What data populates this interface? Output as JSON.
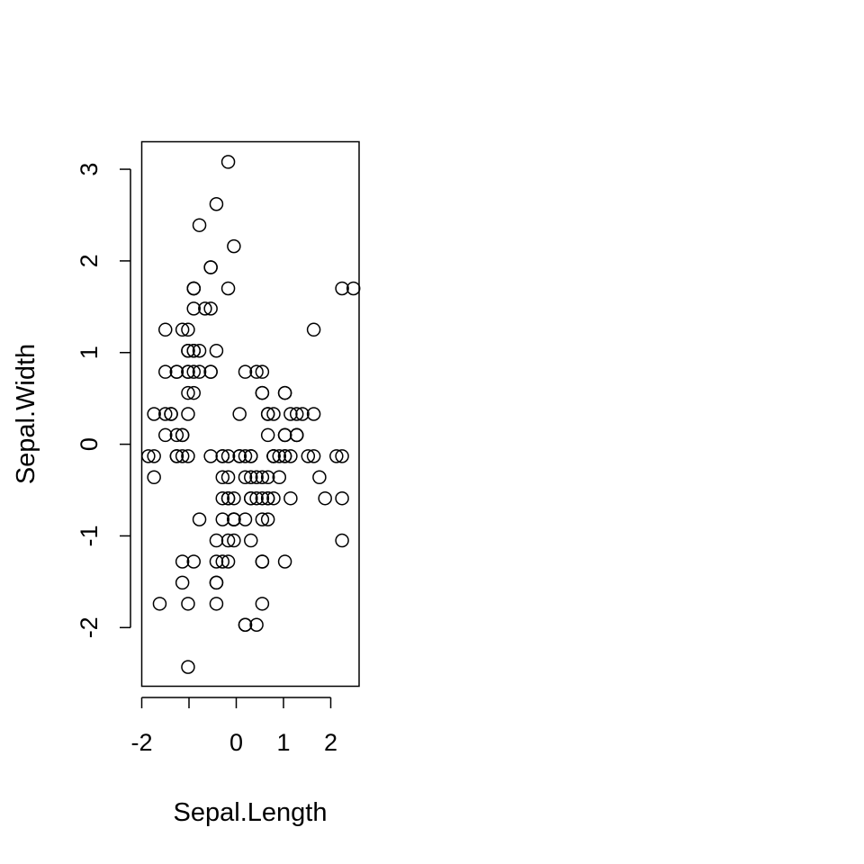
{
  "chart_data": {
    "type": "scatter",
    "xlabel": "Sepal.Length",
    "ylabel": "Sepal.Width",
    "xlim": [
      -2.0,
      2.6
    ],
    "ylim": [
      -2.64,
      3.3
    ],
    "xticks": [
      {
        "value": -2,
        "label": "-2"
      },
      {
        "value": -1,
        "label": ""
      },
      {
        "value": 0,
        "label": "0"
      },
      {
        "value": 1,
        "label": "1"
      },
      {
        "value": 2,
        "label": "2"
      }
    ],
    "yticks": [
      {
        "value": -2,
        "label": "-2"
      },
      {
        "value": -1,
        "label": "-1"
      },
      {
        "value": 0,
        "label": "0"
      },
      {
        "value": 1,
        "label": "1"
      },
      {
        "value": 2,
        "label": "2"
      },
      {
        "value": 3,
        "label": "3"
      }
    ],
    "marker": "open-circle",
    "points": [
      [
        -0.9,
        1.02
      ],
      [
        -1.14,
        -0.13
      ],
      [
        -1.38,
        0.33
      ],
      [
        -1.5,
        0.1
      ],
      [
        -1.02,
        1.25
      ],
      [
        -0.54,
        1.93
      ],
      [
        -1.5,
        0.79
      ],
      [
        -1.02,
        0.79
      ],
      [
        -1.74,
        -0.36
      ],
      [
        -1.14,
        0.1
      ],
      [
        -0.54,
        1.48
      ],
      [
        -1.26,
        0.79
      ],
      [
        -1.26,
        -0.13
      ],
      [
        -1.86,
        -0.13
      ],
      [
        -0.05,
        2.16
      ],
      [
        -0.17,
        3.08
      ],
      [
        -0.54,
        1.93
      ],
      [
        -0.9,
        1.02
      ],
      [
        -0.17,
        1.7
      ],
      [
        -0.9,
        1.7
      ],
      [
        -0.54,
        0.79
      ],
      [
        -0.9,
        1.48
      ],
      [
        -1.5,
        1.25
      ],
      [
        -0.9,
        0.56
      ],
      [
        -1.26,
        0.79
      ],
      [
        -1.02,
        -0.13
      ],
      [
        -1.02,
        0.79
      ],
      [
        -0.78,
        1.02
      ],
      [
        -0.78,
        0.79
      ],
      [
        -1.38,
        0.33
      ],
      [
        -1.26,
        0.1
      ],
      [
        -0.54,
        0.79
      ],
      [
        -0.78,
        2.39
      ],
      [
        -0.42,
        2.62
      ],
      [
        -1.14,
        0.1
      ],
      [
        -1.02,
        0.33
      ],
      [
        -0.42,
        1.02
      ],
      [
        -1.14,
        1.25
      ],
      [
        -1.74,
        -0.13
      ],
      [
        -0.9,
        0.79
      ],
      [
        -1.02,
        1.02
      ],
      [
        -1.62,
        -1.74
      ],
      [
        -1.74,
        0.33
      ],
      [
        -1.02,
        1.02
      ],
      [
        -0.9,
        1.7
      ],
      [
        -1.26,
        -0.13
      ],
      [
        -0.9,
        1.7
      ],
      [
        -1.5,
        0.33
      ],
      [
        -0.66,
        1.48
      ],
      [
        -1.02,
        0.56
      ],
      [
        1.4,
        0.33
      ],
      [
        0.67,
        0.33
      ],
      [
        1.28,
        0.1
      ],
      [
        -0.42,
        -1.74
      ],
      [
        0.79,
        -0.59
      ],
      [
        -0.17,
        -0.59
      ],
      [
        0.55,
        0.56
      ],
      [
        -1.14,
        -1.51
      ],
      [
        0.91,
        -0.36
      ],
      [
        -0.78,
        -0.82
      ],
      [
        -1.02,
        -2.43
      ],
      [
        0.07,
        -0.13
      ],
      [
        0.19,
        -1.97
      ],
      [
        0.31,
        -0.36
      ],
      [
        -0.29,
        -0.36
      ],
      [
        1.03,
        0.1
      ],
      [
        -0.29,
        -0.13
      ],
      [
        -0.05,
        -0.82
      ],
      [
        0.43,
        -1.97
      ],
      [
        -0.29,
        -1.28
      ],
      [
        0.07,
        0.33
      ],
      [
        0.31,
        -0.59
      ],
      [
        0.55,
        -1.28
      ],
      [
        0.31,
        -0.59
      ],
      [
        0.67,
        -0.36
      ],
      [
        0.91,
        -0.13
      ],
      [
        1.15,
        -0.59
      ],
      [
        1.03,
        -0.13
      ],
      [
        0.19,
        -0.36
      ],
      [
        -0.17,
        -1.05
      ],
      [
        -0.42,
        -1.51
      ],
      [
        -0.42,
        -1.51
      ],
      [
        -0.05,
        -0.82
      ],
      [
        0.19,
        -0.82
      ],
      [
        -0.54,
        -0.13
      ],
      [
        0.19,
        0.79
      ],
      [
        1.03,
        0.1
      ],
      [
        0.55,
        -1.74
      ],
      [
        -0.29,
        -0.13
      ],
      [
        -0.42,
        -1.28
      ],
      [
        -0.42,
        -1.05
      ],
      [
        0.31,
        -0.13
      ],
      [
        -0.05,
        -1.05
      ],
      [
        -1.02,
        -1.74
      ],
      [
        -0.29,
        -0.82
      ],
      [
        -0.17,
        -0.13
      ],
      [
        -0.17,
        -0.36
      ],
      [
        0.43,
        -0.36
      ],
      [
        -0.9,
        -1.28
      ],
      [
        -0.17,
        -0.59
      ],
      [
        0.55,
        0.56
      ],
      [
        -0.05,
        -0.82
      ],
      [
        1.52,
        -0.13
      ],
      [
        0.55,
        -0.36
      ],
      [
        0.79,
        -0.13
      ],
      [
        2.12,
        -0.13
      ],
      [
        -1.14,
        -1.28
      ],
      [
        1.76,
        -0.36
      ],
      [
        1.03,
        -1.28
      ],
      [
        1.64,
        1.25
      ],
      [
        0.79,
        0.33
      ],
      [
        0.67,
        -0.82
      ],
      [
        1.15,
        -0.13
      ],
      [
        -0.17,
        -1.28
      ],
      [
        -0.05,
        -0.59
      ],
      [
        0.67,
        0.33
      ],
      [
        0.79,
        -0.13
      ],
      [
        2.24,
        1.7
      ],
      [
        2.24,
        -1.05
      ],
      [
        0.19,
        -1.97
      ],
      [
        1.28,
        0.33
      ],
      [
        -0.29,
        -0.59
      ],
      [
        2.24,
        -0.59
      ],
      [
        0.55,
        -0.82
      ],
      [
        1.03,
        0.56
      ],
      [
        1.64,
        0.33
      ],
      [
        0.43,
        -0.59
      ],
      [
        0.31,
        -0.13
      ],
      [
        0.67,
        -0.59
      ],
      [
        1.64,
        -0.13
      ],
      [
        1.88,
        -0.59
      ],
      [
        2.48,
        1.7
      ],
      [
        0.67,
        -0.59
      ],
      [
        0.55,
        -0.59
      ],
      [
        0.31,
        -1.05
      ],
      [
        2.24,
        -0.13
      ],
      [
        0.55,
        0.79
      ],
      [
        0.67,
        0.1
      ],
      [
        0.19,
        -0.13
      ],
      [
        1.28,
        0.1
      ],
      [
        1.03,
        0.1
      ],
      [
        1.28,
        0.1
      ],
      [
        -0.05,
        -0.82
      ],
      [
        1.15,
        0.33
      ],
      [
        1.03,
        0.56
      ],
      [
        1.03,
        -0.13
      ],
      [
        0.55,
        -1.28
      ],
      [
        0.79,
        -0.13
      ],
      [
        0.43,
        0.79
      ],
      [
        0.07,
        -0.13
      ]
    ]
  }
}
